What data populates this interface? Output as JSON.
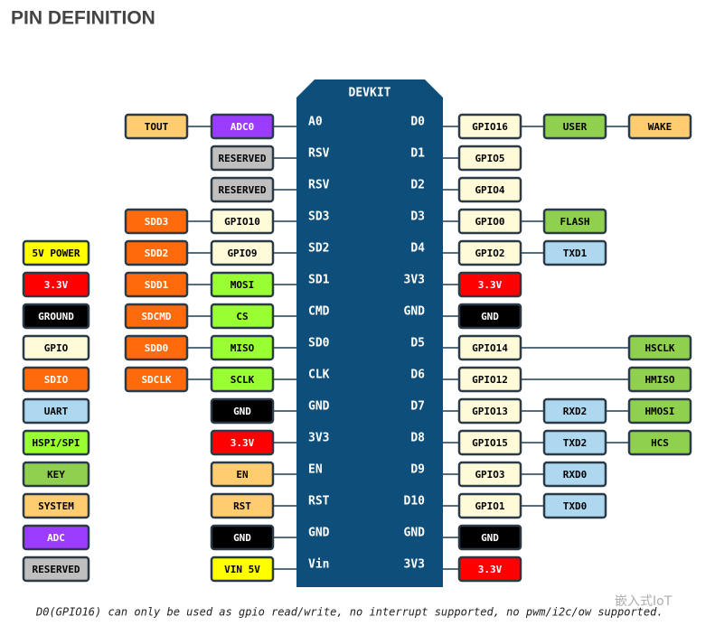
{
  "title": "PIN DEFINITION",
  "board": {
    "label": "DEVKIT",
    "color": "#0d4e7a",
    "left_pins": [
      "A0",
      "RSV",
      "RSV",
      "SD3",
      "SD2",
      "SD1",
      "CMD",
      "SD0",
      "CLK",
      "GND",
      "3V3",
      "EN",
      "RST",
      "GND",
      "Vin"
    ],
    "right_pins": [
      "D0",
      "D1",
      "D2",
      "D3",
      "D4",
      "3V3",
      "GND",
      "D5",
      "D6",
      "D7",
      "D8",
      "D9",
      "D10",
      "GND",
      "3V3"
    ]
  },
  "legend": [
    null,
    null,
    null,
    null,
    {
      "label": "5V POWER",
      "color": "#ffff00"
    },
    {
      "label": "3.3V",
      "color": "#ff0000"
    },
    {
      "label": "GROUND",
      "color": "#000000"
    },
    {
      "label": "GPIO",
      "color": "#fffbd8"
    },
    {
      "label": "SDIO",
      "color": "#ff6a0d"
    },
    {
      "label": "UART",
      "color": "#add8f0"
    },
    {
      "label": "HSPI/SPI",
      "color": "#99ff33"
    },
    {
      "label": "KEY",
      "color": "#8fd14f"
    },
    {
      "label": "SYSTEM",
      "color": "#ffcc70"
    },
    {
      "label": "ADC",
      "color": "#9b3cff"
    },
    {
      "label": "RESERVED",
      "color": "#bfbfbf"
    }
  ],
  "left_outer": [
    {
      "label": "TOUT",
      "color": "#ffcc70"
    },
    null,
    null,
    {
      "label": "SDD3",
      "color": "#ff6a0d"
    },
    {
      "label": "SDD2",
      "color": "#ff6a0d"
    },
    {
      "label": "SDD1",
      "color": "#ff6a0d"
    },
    {
      "label": "SDCMD",
      "color": "#ff6a0d"
    },
    {
      "label": "SDD0",
      "color": "#ff6a0d"
    },
    {
      "label": "SDCLK",
      "color": "#ff6a0d"
    },
    null,
    null,
    null,
    null,
    null,
    null
  ],
  "left_inner": [
    {
      "label": "ADC0",
      "color": "#9b3cff"
    },
    {
      "label": "RESERVED",
      "color": "#bfbfbf"
    },
    {
      "label": "RESERVED",
      "color": "#bfbfbf"
    },
    {
      "label": "GPIO10",
      "color": "#fffbd8"
    },
    {
      "label": "GPIO9",
      "color": "#fffbd8"
    },
    {
      "label": "MOSI",
      "color": "#99ff33"
    },
    {
      "label": "CS",
      "color": "#99ff33"
    },
    {
      "label": "MISO",
      "color": "#99ff33"
    },
    {
      "label": "SCLK",
      "color": "#99ff33"
    },
    {
      "label": "GND",
      "color": "#000000"
    },
    {
      "label": "3.3V",
      "color": "#ff0000"
    },
    {
      "label": "EN",
      "color": "#ffcc70"
    },
    {
      "label": "RST",
      "color": "#ffcc70"
    },
    {
      "label": "GND",
      "color": "#000000"
    },
    {
      "label": "VIN 5V",
      "color": "#ffff00"
    }
  ],
  "right_inner": [
    {
      "label": "GPIO16",
      "color": "#fffbd8"
    },
    {
      "label": "GPIO5",
      "color": "#fffbd8"
    },
    {
      "label": "GPIO4",
      "color": "#fffbd8"
    },
    {
      "label": "GPIO0",
      "color": "#fffbd8"
    },
    {
      "label": "GPIO2",
      "color": "#fffbd8"
    },
    {
      "label": "3.3V",
      "color": "#ff0000"
    },
    {
      "label": "GND",
      "color": "#000000"
    },
    {
      "label": "GPIO14",
      "color": "#fffbd8"
    },
    {
      "label": "GPIO12",
      "color": "#fffbd8"
    },
    {
      "label": "GPIO13",
      "color": "#fffbd8"
    },
    {
      "label": "GPIO15",
      "color": "#fffbd8"
    },
    {
      "label": "GPIO3",
      "color": "#fffbd8"
    },
    {
      "label": "GPIO1",
      "color": "#fffbd8"
    },
    {
      "label": "GND",
      "color": "#000000"
    },
    {
      "label": "3.3V",
      "color": "#ff0000"
    }
  ],
  "right_middle": [
    {
      "label": "USER",
      "color": "#8fd14f"
    },
    null,
    null,
    {
      "label": "FLASH",
      "color": "#8fd14f"
    },
    {
      "label": "TXD1",
      "color": "#add8f0"
    },
    null,
    null,
    null,
    null,
    {
      "label": "RXD2",
      "color": "#add8f0"
    },
    {
      "label": "TXD2",
      "color": "#add8f0"
    },
    {
      "label": "RXD0",
      "color": "#add8f0"
    },
    {
      "label": "TXD0",
      "color": "#add8f0"
    },
    null,
    null
  ],
  "right_outer": [
    {
      "label": "WAKE",
      "color": "#ffcc70"
    },
    null,
    null,
    null,
    null,
    null,
    null,
    {
      "label": "HSCLK",
      "color": "#8fd14f"
    },
    {
      "label": "HMISO",
      "color": "#8fd14f"
    },
    {
      "label": "HMOSI",
      "color": "#8fd14f"
    },
    {
      "label": "HCS",
      "color": "#8fd14f"
    },
    null,
    null,
    null,
    null
  ],
  "note": "D0(GPIO16) can only be used as gpio read/write, no interrupt supported, no pwm/i2c/ow supported.",
  "watermark": "嵌入式IoT"
}
